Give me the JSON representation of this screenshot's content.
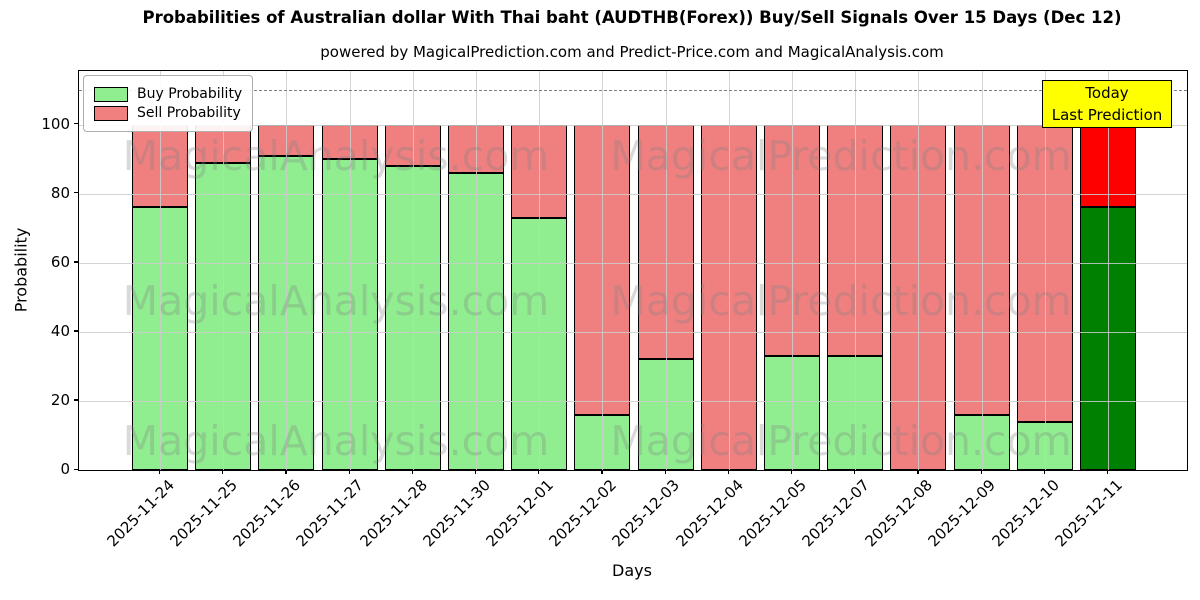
{
  "page": {
    "title": "Probabilities of Australian dollar With Thai baht (AUDTHB(Forex)) Buy/Sell Signals Over 15 Days (Dec 12)",
    "subtitle": "powered by MagicalPrediction.com and Predict-Price.com and MagicalAnalysis.com"
  },
  "axes": {
    "xlabel": "Days",
    "ylabel": "Probability"
  },
  "legend": {
    "items": [
      {
        "label": "Buy Probability",
        "color": "#90ee90"
      },
      {
        "label": "Sell Probability",
        "color": "#f08080"
      }
    ]
  },
  "annotation_box": {
    "line1": "Today",
    "line2": "Last Prediction",
    "bg_color": "#ffff00",
    "border_color": "#000000"
  },
  "watermarks": {
    "left_text": "MagicalAnalysis.com",
    "right_text": "MagicalPrediction.com",
    "color": "rgba(128,128,128,0.3)"
  },
  "chart_data": {
    "type": "bar",
    "stacked": true,
    "title": "Probabilities of Australian dollar With Thai baht (AUDTHB(Forex)) Buy/Sell Signals Over 15 Days (Dec 12)",
    "xlabel": "Days",
    "ylabel": "Probability",
    "categories": [
      "2025-11-24",
      "2025-11-25",
      "2025-11-26",
      "2025-11-27",
      "2025-11-28",
      "2025-11-30",
      "2025-12-01",
      "2025-12-02",
      "2025-12-03",
      "2025-12-04",
      "2025-12-05",
      "2025-12-07",
      "2025-12-08",
      "2025-12-09",
      "2025-12-10",
      "2025-12-11"
    ],
    "series": [
      {
        "name": "Buy Probability",
        "color": "#90ee90",
        "today_color": "#008000",
        "values": [
          76,
          89,
          91,
          90,
          88,
          86,
          73,
          16,
          32,
          0,
          33,
          33,
          0,
          16,
          14,
          76
        ]
      },
      {
        "name": "Sell Probability",
        "color": "#f08080",
        "today_color": "#ff0000",
        "values": [
          24,
          11,
          9,
          10,
          12,
          14,
          27,
          84,
          68,
          100,
          67,
          67,
          100,
          84,
          86,
          24
        ]
      }
    ],
    "today_index": 15,
    "yticks": [
      0,
      20,
      40,
      60,
      80,
      100
    ],
    "ylim": [
      0,
      115.5
    ],
    "dashed_line_y": 110,
    "grid": true,
    "legend_position": "upper left",
    "bar_edge_color": "#000000"
  }
}
